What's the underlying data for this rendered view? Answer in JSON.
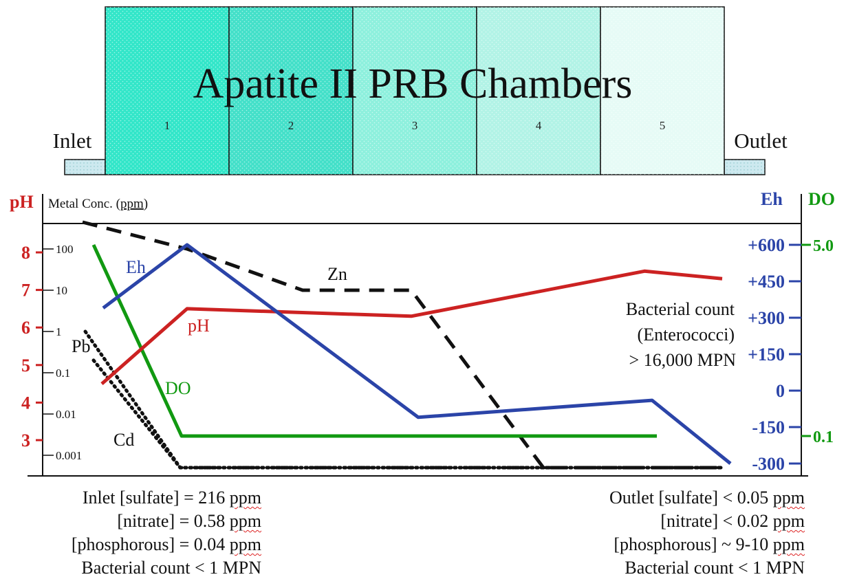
{
  "title": "Apatite II PRB Chambers",
  "inlet_label": "Inlet",
  "outlet_label": "Outlet",
  "chambers": [
    {
      "label": "1",
      "color": "#33e6c9"
    },
    {
      "label": "2",
      "color": "#44e0c9"
    },
    {
      "label": "3",
      "color": "#8ef0dd"
    },
    {
      "label": "4",
      "color": "#b2f3e6"
    },
    {
      "label": "5",
      "color": "#e6fbf6"
    }
  ],
  "axes": {
    "ph_title": "pH",
    "metal_title": "Metal Conc. (ppm)",
    "metal_unit_word": "ppm",
    "eh_title": "Eh",
    "do_title": "DO",
    "ph_ticks": [
      "8",
      "7",
      "6",
      "5",
      "4",
      "3"
    ],
    "metal_ticks": [
      "100",
      "10",
      "1",
      "0.1",
      "0.01",
      "0.001"
    ],
    "eh_ticks": [
      "+600",
      "+450",
      "+300",
      "+150",
      "0",
      "-150",
      "-300"
    ],
    "do_ticks": [
      "5.0",
      "0.1"
    ]
  },
  "colors": {
    "ph": "#cc2222",
    "eh": "#2b44a8",
    "do": "#119911",
    "metal": "#111111"
  },
  "series_labels": {
    "eh": "Eh",
    "ph": "pH",
    "do": "DO",
    "zn": "Zn",
    "pb": "Pb",
    "cd": "Cd"
  },
  "chart_data": {
    "type": "line",
    "x": [
      "Inlet",
      "1",
      "2",
      "3",
      "4",
      "5",
      "Outlet"
    ],
    "series": [
      {
        "name": "pH",
        "axis": "pH",
        "x": [
          "Inlet",
          "1",
          "3",
          "5",
          "Outlet"
        ],
        "values": [
          4.5,
          6.5,
          6.3,
          7.5,
          7.3
        ]
      },
      {
        "name": "Eh",
        "axis": "Eh",
        "x": [
          "Inlet",
          "1",
          "3",
          "5",
          "Outlet"
        ],
        "values": [
          340,
          600,
          -110,
          -40,
          -300
        ]
      },
      {
        "name": "DO",
        "axis": "DO",
        "x": [
          "Inlet",
          "1",
          "5"
        ],
        "values": [
          5.0,
          0.1,
          0.1
        ]
      },
      {
        "name": "Zn",
        "axis": "Metal Conc. (ppm)",
        "x": [
          "Inlet",
          "1",
          "2",
          "3",
          "4",
          "5",
          "Outlet"
        ],
        "values": [
          300,
          100,
          10,
          10,
          0.001,
          0.001,
          0.001
        ]
      },
      {
        "name": "Pb",
        "axis": "Metal Conc. (ppm)",
        "x": [
          "Inlet",
          "1",
          "5",
          "Outlet"
        ],
        "values": [
          1,
          0.001,
          0.001,
          0.001
        ]
      },
      {
        "name": "Cd",
        "axis": "Metal Conc. (ppm)",
        "x": [
          "Inlet",
          "1"
        ],
        "values": [
          0.2,
          0.001
        ]
      }
    ]
  },
  "bacterial_note": {
    "line1": "Bacterial count",
    "line2": "(Enterococci)",
    "line3": "> 16,000 MPN"
  },
  "inlet_notes": [
    {
      "text": "Inlet [sulfate] = 216",
      "unit": "ppm"
    },
    {
      "text": "[nitrate] = 0.58",
      "unit": "ppm"
    },
    {
      "text": "[phosphorous] = 0.04",
      "unit": "ppm"
    },
    {
      "text": "Bacterial count < 1 MPN",
      "unit": ""
    }
  ],
  "outlet_notes": [
    {
      "text": "Outlet [sulfate] < 0.05",
      "unit": "ppm"
    },
    {
      "text": "[nitrate] < 0.02",
      "unit": "ppm"
    },
    {
      "text": "[phosphorous] ~ 9-10",
      "unit": "ppm"
    },
    {
      "text": "Bacterial count < 1 MPN",
      "unit": ""
    }
  ]
}
